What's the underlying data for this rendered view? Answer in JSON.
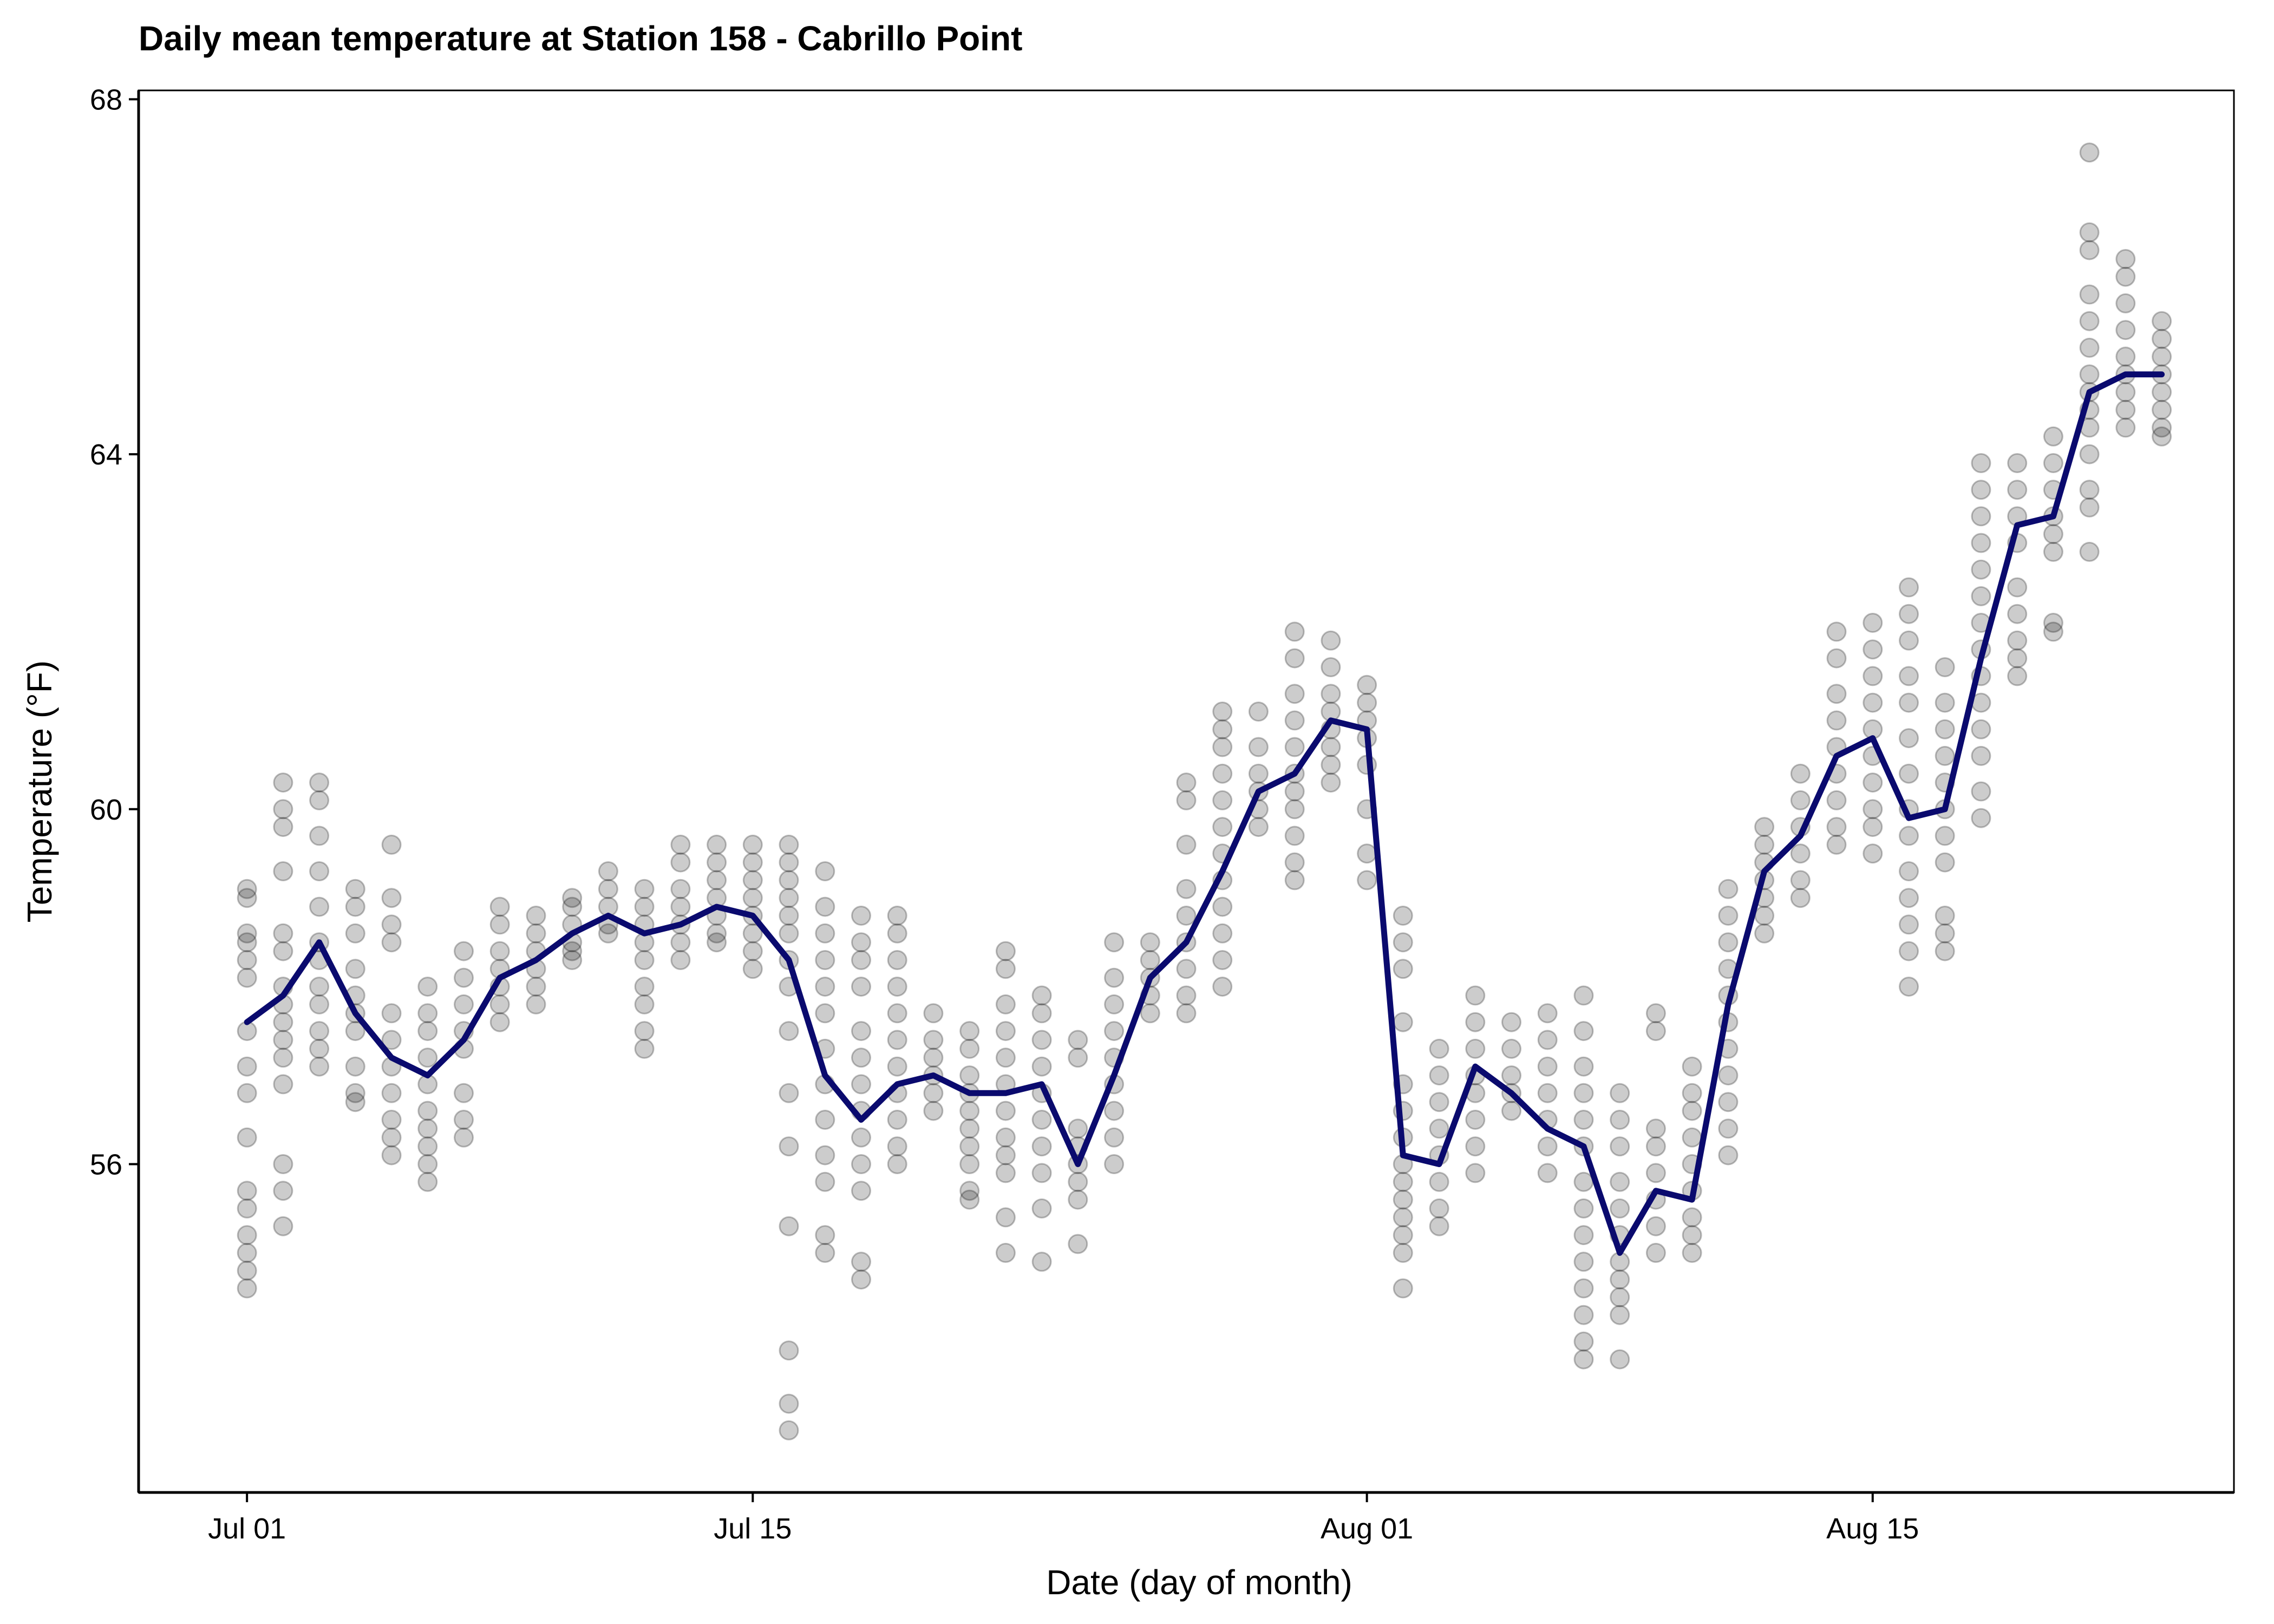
{
  "chart_data": {
    "type": "scatter",
    "title": "Daily mean temperature at Station 158 - Cabrillo Point",
    "xlabel": "Date (day of month)",
    "ylabel": "Temperature (°F)",
    "x_ticks": [
      {
        "date": "2023-07-01",
        "label": "Jul 01"
      },
      {
        "date": "2023-07-15",
        "label": "Jul 15"
      },
      {
        "date": "2023-08-01",
        "label": "Aug 01"
      },
      {
        "date": "2023-08-15",
        "label": "Aug 15"
      }
    ],
    "y_ticks": [
      56,
      60,
      64,
      68
    ],
    "xlim": [
      "2023-06-28",
      "2023-08-25"
    ],
    "ylim": [
      52.3,
      68.1
    ],
    "grid": false,
    "legend": "none",
    "colors": {
      "points": "#000000",
      "mean_line": "#0a0a6e"
    },
    "mean_series": {
      "x": [
        "2023-07-01",
        "2023-07-02",
        "2023-07-03",
        "2023-07-04",
        "2023-07-05",
        "2023-07-06",
        "2023-07-07",
        "2023-07-08",
        "2023-07-09",
        "2023-07-10",
        "2023-07-11",
        "2023-07-12",
        "2023-07-13",
        "2023-07-14",
        "2023-07-15",
        "2023-07-16",
        "2023-07-17",
        "2023-07-18",
        "2023-07-19",
        "2023-07-20",
        "2023-07-21",
        "2023-07-22",
        "2023-07-23",
        "2023-07-24",
        "2023-07-25",
        "2023-07-26",
        "2023-07-27",
        "2023-07-28",
        "2023-07-29",
        "2023-07-30",
        "2023-07-31",
        "2023-08-01",
        "2023-08-02",
        "2023-08-03",
        "2023-08-04",
        "2023-08-05",
        "2023-08-06",
        "2023-08-07",
        "2023-08-08",
        "2023-08-09",
        "2023-08-10",
        "2023-08-11",
        "2023-08-12",
        "2023-08-13",
        "2023-08-14",
        "2023-08-15",
        "2023-08-16",
        "2023-08-17",
        "2023-08-18",
        "2023-08-19",
        "2023-08-20",
        "2023-08-21",
        "2023-08-22",
        "2023-08-23"
      ],
      "y": [
        57.6,
        57.9,
        58.5,
        57.7,
        57.2,
        57.0,
        57.4,
        58.1,
        58.3,
        58.6,
        58.8,
        58.6,
        58.7,
        58.9,
        58.8,
        58.3,
        57.0,
        56.5,
        56.9,
        57.0,
        56.8,
        56.8,
        56.9,
        56.0,
        57.0,
        58.1,
        58.5,
        59.3,
        60.2,
        60.4,
        61.0,
        60.9,
        56.1,
        56.0,
        57.1,
        56.8,
        56.4,
        56.2,
        55.0,
        55.7,
        55.6,
        57.8,
        59.3,
        59.7,
        60.6,
        60.8,
        59.9,
        60.0,
        61.7,
        63.2,
        63.3,
        64.7,
        64.9,
        64.9
      ]
    },
    "observations": [
      {
        "x": "2023-07-01",
        "y": [
          59.1,
          59.0,
          58.6,
          58.5,
          58.3,
          58.1,
          57.5,
          57.1,
          56.8,
          56.3,
          55.7,
          55.5,
          55.2,
          55.0,
          54.8,
          54.6
        ]
      },
      {
        "x": "2023-07-02",
        "y": [
          60.3,
          60.0,
          59.8,
          59.3,
          58.6,
          58.4,
          58.0,
          57.8,
          57.6,
          57.4,
          57.2,
          56.9,
          56.0,
          55.7,
          55.3
        ]
      },
      {
        "x": "2023-07-03",
        "y": [
          60.3,
          60.1,
          59.7,
          59.3,
          58.9,
          58.5,
          58.3,
          58.0,
          57.8,
          57.5,
          57.3,
          57.1
        ]
      },
      {
        "x": "2023-07-04",
        "y": [
          59.1,
          58.9,
          58.6,
          58.2,
          57.9,
          57.7,
          57.5,
          57.1,
          56.8,
          56.7
        ]
      },
      {
        "x": "2023-07-05",
        "y": [
          59.6,
          59.0,
          58.7,
          58.5,
          57.7,
          57.4,
          57.1,
          56.8,
          56.5,
          56.3,
          56.1
        ]
      },
      {
        "x": "2023-07-06",
        "y": [
          58.0,
          57.7,
          57.5,
          57.2,
          56.9,
          56.6,
          56.4,
          56.2,
          56.0,
          55.8
        ]
      },
      {
        "x": "2023-07-07",
        "y": [
          58.4,
          58.1,
          57.8,
          57.5,
          57.3,
          56.8,
          56.5,
          56.3
        ]
      },
      {
        "x": "2023-07-08",
        "y": [
          58.9,
          58.7,
          58.4,
          58.2,
          58.0,
          57.8,
          57.6
        ]
      },
      {
        "x": "2023-07-09",
        "y": [
          58.8,
          58.6,
          58.4,
          58.2,
          58.0,
          57.8
        ]
      },
      {
        "x": "2023-07-10",
        "y": [
          59.0,
          58.9,
          58.7,
          58.5,
          58.3,
          58.4
        ]
      },
      {
        "x": "2023-07-11",
        "y": [
          59.3,
          59.1,
          58.9,
          58.7,
          58.6
        ]
      },
      {
        "x": "2023-07-12",
        "y": [
          59.1,
          58.9,
          58.7,
          58.5,
          58.3,
          58.0,
          57.8,
          57.5,
          57.3
        ]
      },
      {
        "x": "2023-07-13",
        "y": [
          59.6,
          59.4,
          59.1,
          58.9,
          58.7,
          58.5,
          58.3
        ]
      },
      {
        "x": "2023-07-14",
        "y": [
          59.6,
          59.4,
          59.2,
          59.0,
          58.8,
          58.6,
          58.5
        ]
      },
      {
        "x": "2023-07-15",
        "y": [
          59.6,
          59.4,
          59.2,
          59.0,
          58.8,
          58.6,
          58.4,
          58.2
        ]
      },
      {
        "x": "2023-07-16",
        "y": [
          59.6,
          59.4,
          59.2,
          59.0,
          58.8,
          58.6,
          58.3,
          58.0,
          57.5,
          56.8,
          56.2,
          55.3,
          53.9,
          53.3,
          53.0
        ]
      },
      {
        "x": "2023-07-17",
        "y": [
          59.3,
          58.9,
          58.6,
          58.3,
          58.0,
          57.7,
          57.3,
          56.9,
          56.5,
          56.1,
          55.8,
          55.2,
          55.0
        ]
      },
      {
        "x": "2023-07-18",
        "y": [
          58.8,
          58.5,
          58.3,
          58.0,
          57.5,
          57.2,
          56.9,
          56.6,
          56.3,
          56.0,
          55.7,
          54.9,
          54.7
        ]
      },
      {
        "x": "2023-07-19",
        "y": [
          58.8,
          58.6,
          58.3,
          58.0,
          57.7,
          57.4,
          57.1,
          56.8,
          56.5,
          56.2,
          56.0
        ]
      },
      {
        "x": "2023-07-20",
        "y": [
          57.7,
          57.4,
          57.2,
          57.0,
          56.8,
          56.6
        ]
      },
      {
        "x": "2023-07-21",
        "y": [
          57.5,
          57.3,
          57.0,
          56.8,
          56.6,
          56.4,
          56.2,
          56.0,
          55.7,
          55.6
        ]
      },
      {
        "x": "2023-07-22",
        "y": [
          58.4,
          58.2,
          57.8,
          57.5,
          57.2,
          56.9,
          56.6,
          56.3,
          56.1,
          55.9,
          55.4,
          55.0
        ]
      },
      {
        "x": "2023-07-23",
        "y": [
          57.9,
          57.7,
          57.4,
          57.1,
          56.8,
          56.5,
          56.2,
          55.9,
          55.5,
          54.9
        ]
      },
      {
        "x": "2023-07-24",
        "y": [
          57.4,
          57.2,
          56.4,
          56.2,
          56.0,
          55.8,
          55.6,
          55.1
        ]
      },
      {
        "x": "2023-07-25",
        "y": [
          58.5,
          58.1,
          57.8,
          57.5,
          57.2,
          56.9,
          56.6,
          56.3,
          56.0
        ]
      },
      {
        "x": "2023-07-26",
        "y": [
          58.5,
          58.3,
          58.1,
          57.9,
          57.7
        ]
      },
      {
        "x": "2023-07-27",
        "y": [
          60.3,
          60.1,
          59.6,
          59.1,
          58.8,
          58.5,
          58.2,
          57.9,
          57.7
        ]
      },
      {
        "x": "2023-07-28",
        "y": [
          61.1,
          60.9,
          60.7,
          60.4,
          60.1,
          59.8,
          59.5,
          59.2,
          58.9,
          58.6,
          58.3,
          58.0
        ]
      },
      {
        "x": "2023-07-29",
        "y": [
          61.1,
          60.7,
          60.4,
          60.2,
          60.0,
          59.8
        ]
      },
      {
        "x": "2023-07-30",
        "y": [
          62.0,
          61.7,
          61.3,
          61.0,
          60.7,
          60.4,
          60.2,
          60.0,
          59.7,
          59.4,
          59.2
        ]
      },
      {
        "x": "2023-07-31",
        "y": [
          61.9,
          61.6,
          61.3,
          61.1,
          60.9,
          60.7,
          60.5,
          60.3
        ]
      },
      {
        "x": "2023-08-01",
        "y": [
          61.4,
          61.2,
          61.0,
          60.8,
          60.5,
          60.0,
          59.5,
          59.2
        ]
      },
      {
        "x": "2023-08-02",
        "y": [
          58.8,
          58.5,
          58.2,
          57.6,
          56.9,
          56.6,
          56.3,
          56.0,
          55.8,
          55.6,
          55.4,
          55.2,
          55.0,
          54.6
        ]
      },
      {
        "x": "2023-08-03",
        "y": [
          57.3,
          57.0,
          56.7,
          56.4,
          56.1,
          55.8,
          55.5,
          55.3
        ]
      },
      {
        "x": "2023-08-04",
        "y": [
          57.9,
          57.6,
          57.3,
          57.0,
          56.8,
          56.5,
          56.2,
          55.9
        ]
      },
      {
        "x": "2023-08-05",
        "y": [
          57.6,
          57.3,
          57.0,
          56.8,
          56.6
        ]
      },
      {
        "x": "2023-08-06",
        "y": [
          57.7,
          57.4,
          57.1,
          56.8,
          56.5,
          56.2,
          55.9
        ]
      },
      {
        "x": "2023-08-07",
        "y": [
          57.9,
          57.5,
          57.1,
          56.8,
          56.5,
          56.2,
          55.8,
          55.5,
          55.2,
          54.9,
          54.6,
          54.3,
          54.0,
          53.8
        ]
      },
      {
        "x": "2023-08-08",
        "y": [
          56.8,
          56.5,
          56.2,
          55.8,
          55.5,
          55.2,
          54.9,
          54.7,
          54.5,
          54.3,
          53.8
        ]
      },
      {
        "x": "2023-08-09",
        "y": [
          57.7,
          57.5,
          56.4,
          56.2,
          55.9,
          55.6,
          55.3,
          55.0
        ]
      },
      {
        "x": "2023-08-10",
        "y": [
          57.1,
          56.8,
          56.6,
          56.3,
          56.0,
          55.7,
          55.4,
          55.2,
          55.0
        ]
      },
      {
        "x": "2023-08-11",
        "y": [
          59.1,
          58.8,
          58.5,
          58.2,
          57.9,
          57.6,
          57.3,
          57.0,
          56.7,
          56.4,
          56.1
        ]
      },
      {
        "x": "2023-08-12",
        "y": [
          59.8,
          59.6,
          59.4,
          59.2,
          59.0,
          58.8,
          58.6
        ]
      },
      {
        "x": "2023-08-13",
        "y": [
          60.4,
          60.1,
          59.8,
          59.5,
          59.2,
          59.0
        ]
      },
      {
        "x": "2023-08-14",
        "y": [
          62.0,
          61.7,
          61.3,
          61.0,
          60.7,
          60.4,
          60.1,
          59.8,
          59.6
        ]
      },
      {
        "x": "2023-08-15",
        "y": [
          62.1,
          61.8,
          61.5,
          61.2,
          60.9,
          60.6,
          60.3,
          60.0,
          59.8,
          59.5
        ]
      },
      {
        "x": "2023-08-16",
        "y": [
          62.5,
          62.2,
          61.9,
          61.5,
          61.2,
          60.8,
          60.4,
          60.0,
          59.7,
          59.3,
          59.0,
          58.7,
          58.4,
          58.0
        ]
      },
      {
        "x": "2023-08-17",
        "y": [
          61.6,
          61.2,
          60.9,
          60.6,
          60.3,
          60.0,
          59.7,
          59.4,
          58.8,
          58.6,
          58.4
        ]
      },
      {
        "x": "2023-08-18",
        "y": [
          63.9,
          63.6,
          63.3,
          63.0,
          62.7,
          62.4,
          62.1,
          61.8,
          61.5,
          61.2,
          60.9,
          60.6,
          60.2,
          59.9
        ]
      },
      {
        "x": "2023-08-19",
        "y": [
          63.9,
          63.6,
          63.3,
          63.0,
          62.5,
          62.2,
          61.9,
          61.7,
          61.5
        ]
      },
      {
        "x": "2023-08-20",
        "y": [
          64.2,
          63.9,
          63.6,
          63.3,
          63.1,
          62.9,
          62.1,
          62.0
        ]
      },
      {
        "x": "2023-08-21",
        "y": [
          67.4,
          66.5,
          66.3,
          65.8,
          65.5,
          65.2,
          64.9,
          64.7,
          64.5,
          64.3,
          64.0,
          63.6,
          63.4,
          62.9
        ]
      },
      {
        "x": "2023-08-22",
        "y": [
          66.2,
          66.0,
          65.7,
          65.4,
          65.1,
          64.9,
          64.7,
          64.5,
          64.3
        ]
      },
      {
        "x": "2023-08-23",
        "y": [
          65.5,
          65.3,
          65.1,
          64.9,
          64.7,
          64.5,
          64.3,
          64.2
        ]
      }
    ]
  }
}
